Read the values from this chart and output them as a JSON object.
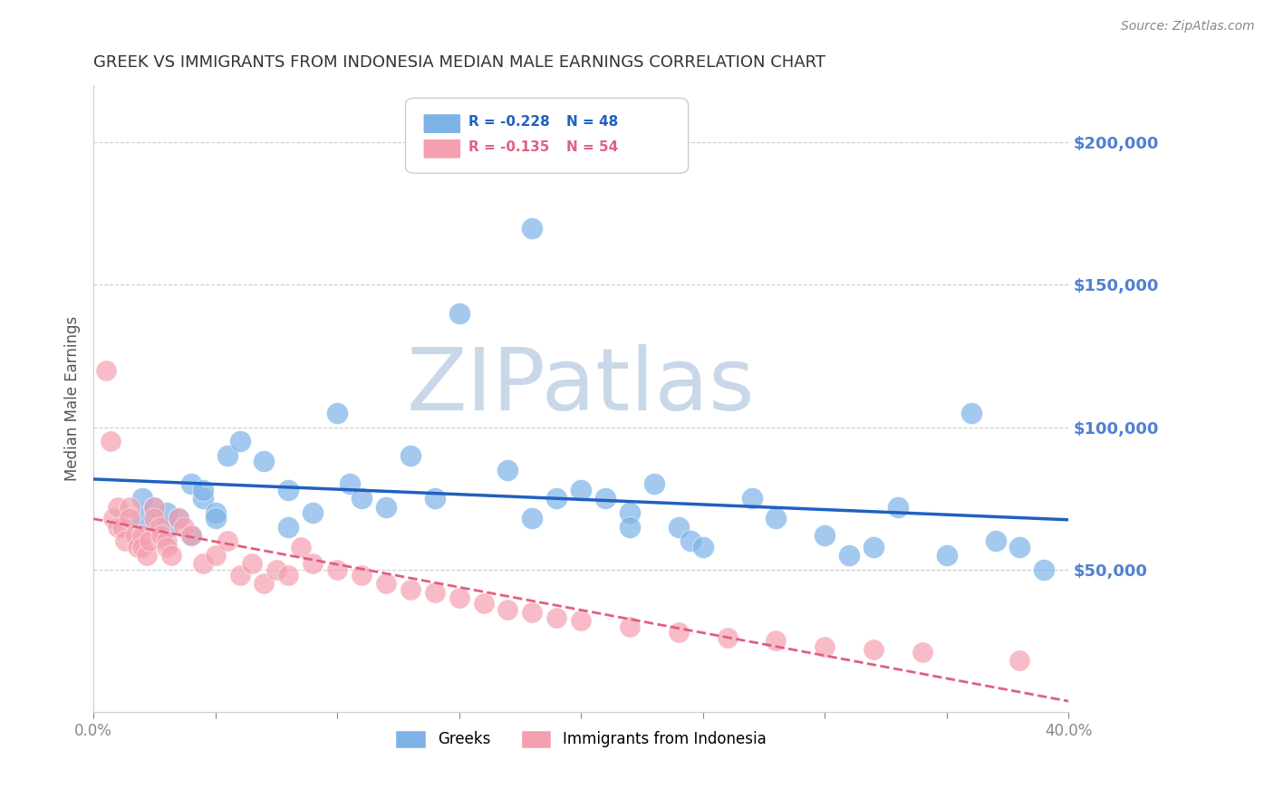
{
  "title": "GREEK VS IMMIGRANTS FROM INDONESIA MEDIAN MALE EARNINGS CORRELATION CHART",
  "source": "Source: ZipAtlas.com",
  "xlabel": "",
  "ylabel": "Median Male Earnings",
  "xmin": 0.0,
  "xmax": 0.4,
  "ymin": 0,
  "ymax": 220000,
  "yticks": [
    0,
    50000,
    100000,
    150000,
    200000
  ],
  "ytick_labels": [
    "",
    "$50,000",
    "$100,000",
    "$150,000",
    "$200,000"
  ],
  "xticks": [
    0.0,
    0.05,
    0.1,
    0.15,
    0.2,
    0.25,
    0.3,
    0.35,
    0.4
  ],
  "legend_r_n": [
    {
      "R": "-0.228",
      "N": "48"
    },
    {
      "R": "-0.135",
      "N": "54"
    }
  ],
  "blue_color": "#7EB3E8",
  "pink_color": "#F4A0B0",
  "blue_line_color": "#2060C0",
  "pink_line_color": "#E06080",
  "watermark": "ZIPatlas",
  "watermark_color": "#C8D8E8",
  "background_color": "#FFFFFF",
  "title_color": "#333333",
  "axis_label_color": "#555555",
  "right_tick_color": "#5080D0",
  "blue_dots_x": [
    0.02,
    0.02,
    0.025,
    0.03,
    0.03,
    0.035,
    0.04,
    0.04,
    0.045,
    0.045,
    0.05,
    0.05,
    0.055,
    0.06,
    0.07,
    0.08,
    0.08,
    0.09,
    0.1,
    0.105,
    0.11,
    0.12,
    0.13,
    0.14,
    0.15,
    0.17,
    0.18,
    0.18,
    0.19,
    0.2,
    0.21,
    0.22,
    0.23,
    0.24,
    0.245,
    0.25,
    0.27,
    0.28,
    0.3,
    0.31,
    0.32,
    0.33,
    0.35,
    0.36,
    0.37,
    0.38,
    0.39,
    0.22
  ],
  "blue_dots_y": [
    75000,
    68000,
    72000,
    65000,
    70000,
    68000,
    62000,
    80000,
    75000,
    78000,
    70000,
    68000,
    90000,
    95000,
    88000,
    78000,
    65000,
    70000,
    105000,
    80000,
    75000,
    72000,
    90000,
    75000,
    140000,
    85000,
    170000,
    68000,
    75000,
    78000,
    75000,
    70000,
    80000,
    65000,
    60000,
    58000,
    75000,
    68000,
    62000,
    55000,
    58000,
    72000,
    55000,
    105000,
    60000,
    58000,
    50000,
    65000
  ],
  "pink_dots_x": [
    0.005,
    0.007,
    0.008,
    0.01,
    0.01,
    0.012,
    0.013,
    0.015,
    0.015,
    0.017,
    0.018,
    0.02,
    0.02,
    0.022,
    0.023,
    0.025,
    0.025,
    0.027,
    0.028,
    0.03,
    0.03,
    0.032,
    0.035,
    0.037,
    0.04,
    0.045,
    0.05,
    0.055,
    0.06,
    0.065,
    0.07,
    0.075,
    0.08,
    0.085,
    0.09,
    0.1,
    0.11,
    0.12,
    0.13,
    0.14,
    0.15,
    0.16,
    0.17,
    0.18,
    0.19,
    0.2,
    0.22,
    0.24,
    0.26,
    0.28,
    0.3,
    0.32,
    0.34,
    0.38
  ],
  "pink_dots_y": [
    120000,
    95000,
    68000,
    72000,
    65000,
    65000,
    60000,
    72000,
    68000,
    62000,
    58000,
    62000,
    58000,
    55000,
    60000,
    72000,
    68000,
    65000,
    62000,
    60000,
    58000,
    55000,
    68000,
    65000,
    62000,
    52000,
    55000,
    60000,
    48000,
    52000,
    45000,
    50000,
    48000,
    58000,
    52000,
    50000,
    48000,
    45000,
    43000,
    42000,
    40000,
    38000,
    36000,
    35000,
    33000,
    32000,
    30000,
    28000,
    26000,
    25000,
    23000,
    22000,
    21000,
    18000
  ]
}
